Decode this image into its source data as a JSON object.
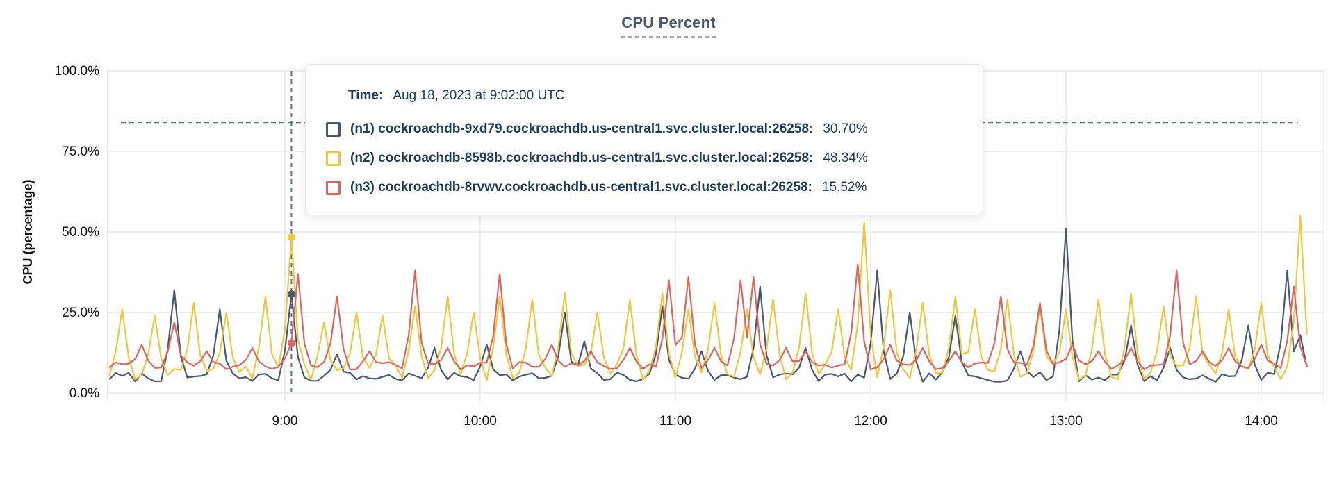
{
  "header": {
    "title": "CPU Percent"
  },
  "y_axis": {
    "title": "CPU (percentage)"
  },
  "tooltip": {
    "time_label": "Time:",
    "time_value": "Aug 18, 2023 at 9:02:00 UTC",
    "rows": [
      {
        "name": "(n1) cockroachdb-9xd79.cockroachdb.us-central1.svc.cluster.local:26258:",
        "value": "30.70%",
        "color": "#475872"
      },
      {
        "name": "(n2) cockroachdb-8598b.cockroachdb.us-central1.svc.cluster.local:26258:",
        "value": "48.34%",
        "color": "#EFC73E"
      },
      {
        "name": "(n3) cockroachdb-8rvwv.cockroachdb.us-central1.svc.cluster.local:26258:",
        "value": "15.52%",
        "color": "#DF655C"
      }
    ]
  },
  "colors": {
    "n1": "#475872",
    "n2": "#EFC73E",
    "n3": "#DF655C",
    "text_navy": "#1C3A5E",
    "title": "#475872",
    "gridline": "#ECECEC",
    "crosshair": "#5C7286",
    "axis_text": "#111111"
  },
  "chart_data": {
    "type": "line",
    "title": "CPU Percent",
    "xlabel": "",
    "ylabel": "CPU (percentage)",
    "ylim": [
      0,
      100
    ],
    "grid": true,
    "x_domain_minutes": [
      486,
      854
    ],
    "sample_step_min": 2,
    "y_ticks": [
      {
        "label": "0.0%",
        "pct": 0
      },
      {
        "label": "25.0%",
        "pct": 25
      },
      {
        "label": "50.0%",
        "pct": 50
      },
      {
        "label": "75.0%",
        "pct": 75
      },
      {
        "label": "100.0%",
        "pct": 100
      }
    ],
    "x_ticks": [
      {
        "label": "9:00",
        "min": 540
      },
      {
        "label": "10:00",
        "min": 600
      },
      {
        "label": "11:00",
        "min": 660
      },
      {
        "label": "12:00",
        "min": 720
      },
      {
        "label": "13:00",
        "min": 780
      },
      {
        "label": "14:00",
        "min": 840
      }
    ],
    "hover": {
      "time_min": 542,
      "time_text": "Aug 18, 2023 at 9:02:00 UTC",
      "crosshair_y_pct": 84,
      "values": {
        "n1": 30.7,
        "n2": 48.34,
        "n3": 15.52
      }
    },
    "series": [
      {
        "short": "n1",
        "name": "(n1) cockroachdb-9xd79.cockroachdb.us-central1.svc.cluster.local:26258",
        "color": "#475872",
        "baseline": 5,
        "noise": 1.5,
        "seed": 7,
        "spikes": [
          [
            505,
            32
          ],
          [
            520,
            26
          ],
          [
            542,
            30.7
          ],
          [
            556,
            12
          ],
          [
            585,
            14
          ],
          [
            602,
            15
          ],
          [
            625,
            25
          ],
          [
            632,
            16
          ],
          [
            655,
            27
          ],
          [
            668,
            13
          ],
          [
            685,
            33
          ],
          [
            700,
            14
          ],
          [
            722,
            38
          ],
          [
            732,
            25
          ],
          [
            745,
            24
          ],
          [
            765,
            13
          ],
          [
            780,
            51
          ],
          [
            800,
            21
          ],
          [
            812,
            14
          ],
          [
            835,
            21
          ],
          [
            847,
            38
          ],
          [
            852,
            18
          ]
        ]
      },
      {
        "short": "n2",
        "name": "(n2) cockroachdb-8598b.cockroachdb.us-central1.svc.cluster.local:26258",
        "color": "#EFC73E",
        "baseline": 6.5,
        "noise": 2.5,
        "seed": 13,
        "spikes": [
          [
            490,
            26
          ],
          [
            500,
            24
          ],
          [
            512,
            28
          ],
          [
            522,
            25
          ],
          [
            533,
            30
          ],
          [
            542,
            48.34
          ],
          [
            552,
            22
          ],
          [
            561,
            25
          ],
          [
            570,
            24
          ],
          [
            580,
            27
          ],
          [
            590,
            30
          ],
          [
            597,
            25
          ],
          [
            605,
            30
          ],
          [
            615,
            29
          ],
          [
            625,
            31
          ],
          [
            635,
            25
          ],
          [
            645,
            29
          ],
          [
            655,
            31
          ],
          [
            663,
            26
          ],
          [
            672,
            28
          ],
          [
            681,
            26
          ],
          [
            690,
            29
          ],
          [
            700,
            31
          ],
          [
            710,
            26
          ],
          [
            718,
            53
          ],
          [
            726,
            32
          ],
          [
            735,
            28
          ],
          [
            745,
            30
          ],
          [
            752,
            26
          ],
          [
            762,
            29
          ],
          [
            771,
            27
          ],
          [
            780,
            26
          ],
          [
            790,
            29
          ],
          [
            800,
            31
          ],
          [
            810,
            27
          ],
          [
            820,
            30
          ],
          [
            830,
            26
          ],
          [
            840,
            28
          ],
          [
            852,
            55
          ]
        ]
      },
      {
        "short": "n3",
        "name": "(n3) cockroachdb-8rvwv.cockroachdb.us-central1.svc.cluster.local:26258",
        "color": "#DF655C",
        "baseline": 8.5,
        "noise": 1.2,
        "seed": 29,
        "spikes": [
          [
            495,
            15
          ],
          [
            505,
            22
          ],
          [
            516,
            13
          ],
          [
            530,
            14
          ],
          [
            542,
            15.52
          ],
          [
            544,
            37
          ],
          [
            556,
            30
          ],
          [
            566,
            13
          ],
          [
            580,
            38
          ],
          [
            590,
            14
          ],
          [
            605,
            37
          ],
          [
            622,
            15
          ],
          [
            633,
            13
          ],
          [
            645,
            14
          ],
          [
            658,
            35
          ],
          [
            663,
            36
          ],
          [
            672,
            14
          ],
          [
            680,
            35
          ],
          [
            683,
            36
          ],
          [
            694,
            14
          ],
          [
            700,
            13
          ],
          [
            715,
            40
          ],
          [
            726,
            15
          ],
          [
            735,
            14
          ],
          [
            745,
            13
          ],
          [
            760,
            30
          ],
          [
            772,
            28
          ],
          [
            782,
            15
          ],
          [
            790,
            13
          ],
          [
            800,
            14
          ],
          [
            814,
            38
          ],
          [
            822,
            13
          ],
          [
            830,
            14
          ],
          [
            840,
            15
          ],
          [
            850,
            33
          ]
        ]
      }
    ]
  }
}
